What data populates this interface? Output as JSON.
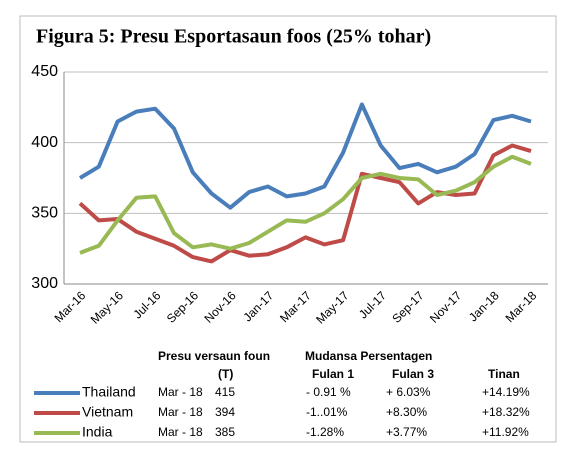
{
  "chart_data": {
    "type": "line",
    "title": "Figura 5: Presu Esportasaun foos (25% tohar)",
    "categories": [
      "Mar-16",
      null,
      "May-16",
      null,
      "Jul-16",
      null,
      "Sep-16",
      null,
      "Nov-16",
      null,
      "Jan-17",
      null,
      "Mar-17",
      null,
      "May-17",
      null,
      "Jul-17",
      null,
      "Sep-17",
      null,
      "Nov-17",
      null,
      "Jan-18",
      null,
      "Mar-18"
    ],
    "series": [
      {
        "name": "Thailand",
        "color": "#4a7ebb",
        "values": [
          375,
          383,
          415,
          422,
          424,
          410,
          379,
          364,
          354,
          365,
          369,
          362,
          364,
          369,
          393,
          427,
          398,
          382,
          385,
          379,
          383,
          392,
          416,
          419,
          415
        ]
      },
      {
        "name": "Vietnam",
        "color": "#be4b48",
        "values": [
          357,
          345,
          346,
          337,
          332,
          327,
          319,
          316,
          324,
          320,
          321,
          326,
          333,
          328,
          331,
          378,
          375,
          372,
          357,
          365,
          363,
          364,
          391,
          398,
          394
        ]
      },
      {
        "name": "India",
        "color": "#98b954",
        "values": [
          322,
          327,
          345,
          361,
          362,
          336,
          326,
          328,
          325,
          329,
          337,
          345,
          344,
          350,
          360,
          375,
          378,
          375,
          374,
          363,
          366,
          372,
          383,
          390,
          385
        ]
      }
    ],
    "ylim": [
      300,
      450
    ],
    "yticks": [
      300,
      350,
      400,
      450
    ],
    "grid": true
  },
  "table": {
    "header": [
      "Presu versaun foun",
      "(T)",
      "Mudansa Persentagen",
      "Fulan 1",
      "Fulan 3",
      "Tinan"
    ],
    "rows": [
      [
        "Mar - 18",
        "415",
        "- 0.91 %",
        "+ 6.03%",
        "+14.19%"
      ],
      [
        "Mar - 18",
        "394",
        "-1..01%",
        "+8.30%",
        "+18.32%"
      ],
      [
        "Mar - 18",
        "385",
        "-1.28%",
        "+3.77%",
        "+11.92%"
      ]
    ]
  }
}
